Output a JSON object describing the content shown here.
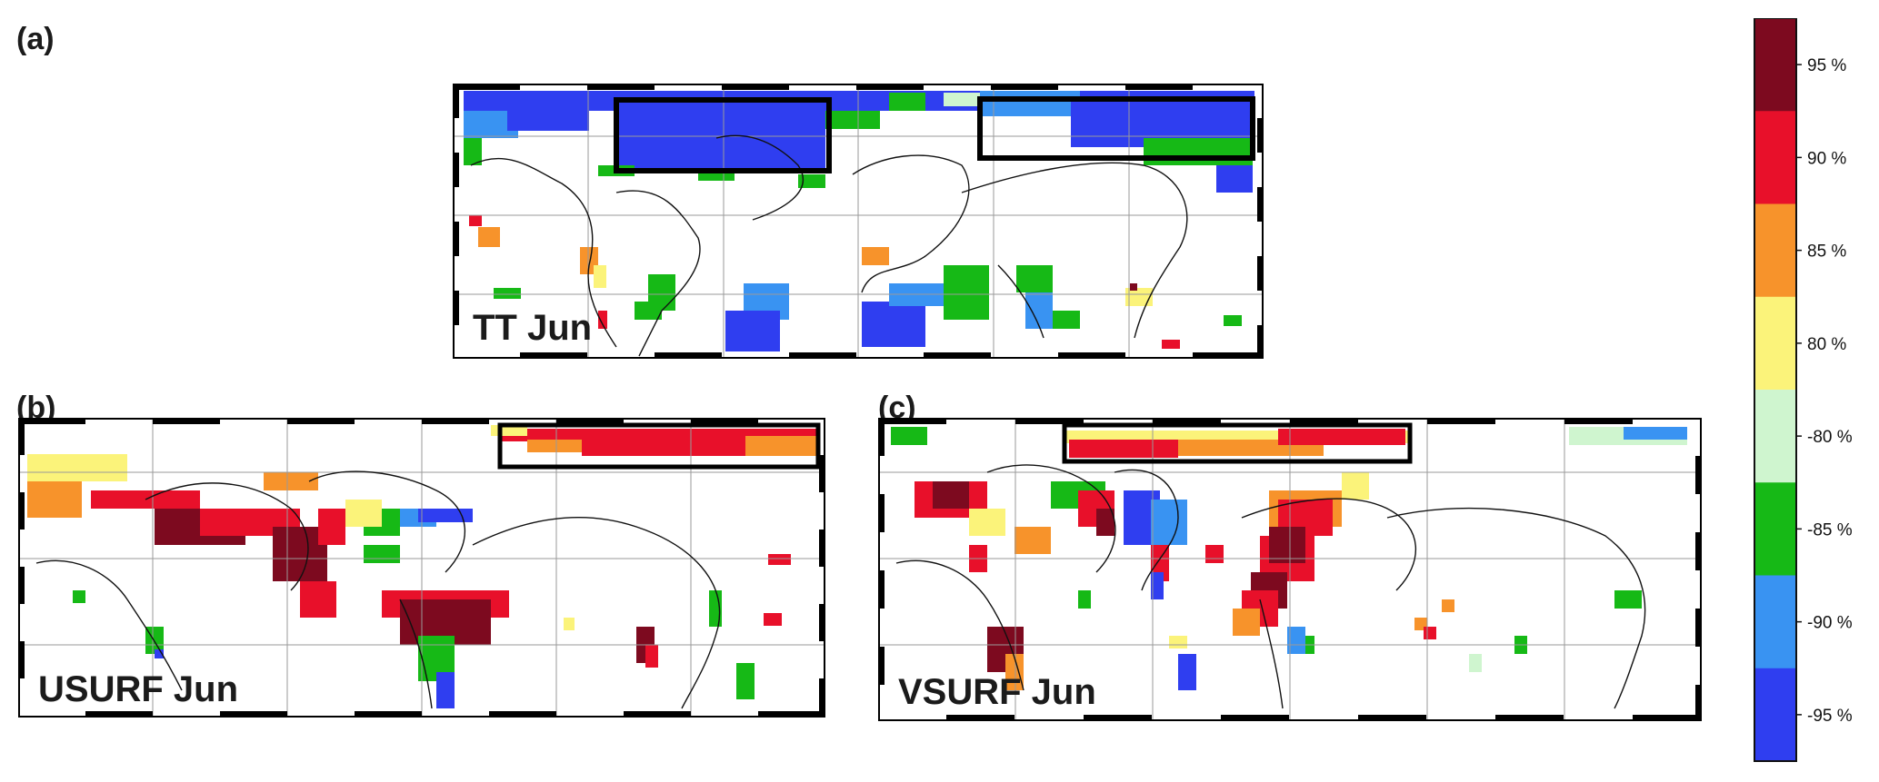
{
  "panels": {
    "a": {
      "letter": "(a)",
      "title": "TT Jun"
    },
    "b": {
      "letter": "(b)",
      "title": "USURF Jun"
    },
    "c": {
      "letter": "(c)",
      "title": "VSURF Jun"
    }
  },
  "chart_data": [
    {
      "type": "heatmap",
      "panel": "(a)",
      "title": "TT Jun",
      "description_of_values": "percentile categories shown by colored grid cells on a world map",
      "highlight_boxes": 2
    },
    {
      "type": "heatmap",
      "panel": "(b)",
      "title": "USURF Jun",
      "highlight_boxes": 1
    },
    {
      "type": "heatmap",
      "panel": "(c)",
      "title": "VSURF Jun",
      "highlight_boxes": 1
    }
  ],
  "colorbar": {
    "orientation": "vertical",
    "bins": [
      {
        "color": "#7d0a1f"
      },
      {
        "color": "#e8102a"
      },
      {
        "color": "#f7932b"
      },
      {
        "color": "#fbf37a"
      },
      {
        "color": "#cff5cf"
      },
      {
        "color": "#16b916"
      },
      {
        "color": "#3993f2"
      },
      {
        "color": "#2f3ef0"
      }
    ],
    "tick_labels": [
      "95 %",
      "90 %",
      "85 %",
      "80 %",
      "-80 %",
      "-85 %",
      "-90 %",
      "-95 %"
    ]
  }
}
